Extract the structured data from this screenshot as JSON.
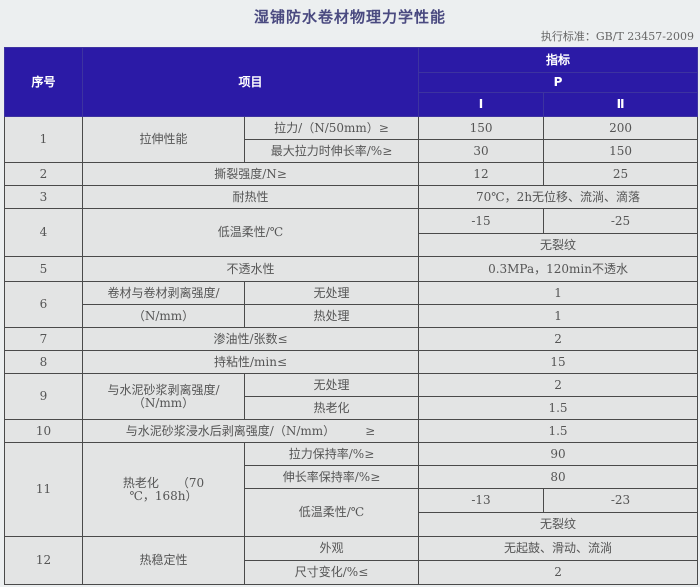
{
  "title": "湿铺防水卷材物理力学性能",
  "standard": "执行标准：GB/T 23457-2009",
  "header": {
    "no": "序号",
    "item": "项目",
    "index": "指标",
    "p": "P",
    "i": "Ⅰ",
    "ii": "Ⅱ"
  },
  "rows": {
    "r1": {
      "no": "1",
      "item": "拉伸性能",
      "sub1": "拉力/（N/50mm）≥",
      "v1a": "150",
      "v1b": "200",
      "sub2": "最大拉力时伸长率/%≥",
      "v2a": "30",
      "v2b": "150"
    },
    "r2": {
      "no": "2",
      "item": "撕裂强度/N≥",
      "va": "12",
      "vb": "25"
    },
    "r3": {
      "no": "3",
      "item": "耐热性",
      "v": "70℃，2h无位移、流淌、滴落"
    },
    "r4": {
      "no": "4",
      "item": "低温柔性/℃",
      "va": "-15",
      "vb": "-25",
      "v2": "无裂纹"
    },
    "r5": {
      "no": "5",
      "item": "不透水性",
      "v": "0.3MPa，120min不透水"
    },
    "r6": {
      "no": "6",
      "item1": "卷材与卷材剥离强度/",
      "item2": "（N/mm）",
      "sub1": "无处理",
      "v1": "1",
      "sub2": "热处理",
      "v2": "1"
    },
    "r7": {
      "no": "7",
      "item": "渗油性/张数≤",
      "v": "2"
    },
    "r8": {
      "no": "8",
      "item": "持粘性/min≤",
      "v": "15"
    },
    "r9": {
      "no": "9",
      "item1": "与水泥砂浆剥离强度/",
      "item2": "（N/mm）",
      "sub1": "无处理",
      "v1": "2",
      "sub2": "热老化",
      "v2": "1.5"
    },
    "r10": {
      "no": "10",
      "item": "与水泥砂浆浸水后剥离强度/（N/mm）　　　≥",
      "v": "1.5"
    },
    "r11": {
      "no": "11",
      "item1": "热老化　　（70",
      "item2": "℃，168h）",
      "sub1": "拉力保持率/%≥",
      "v1": "90",
      "sub2": "伸长率保持率/%≥",
      "v2": "80",
      "sub3": "低温柔性/℃",
      "v3a": "-13",
      "v3b": "-23",
      "v4": "无裂纹"
    },
    "r12": {
      "no": "12",
      "item": "热稳定性",
      "sub1": "外观",
      "v1": "无起鼓、滑动、流淌",
      "sub2": "尺寸变化/%≤",
      "v2": "2"
    }
  }
}
